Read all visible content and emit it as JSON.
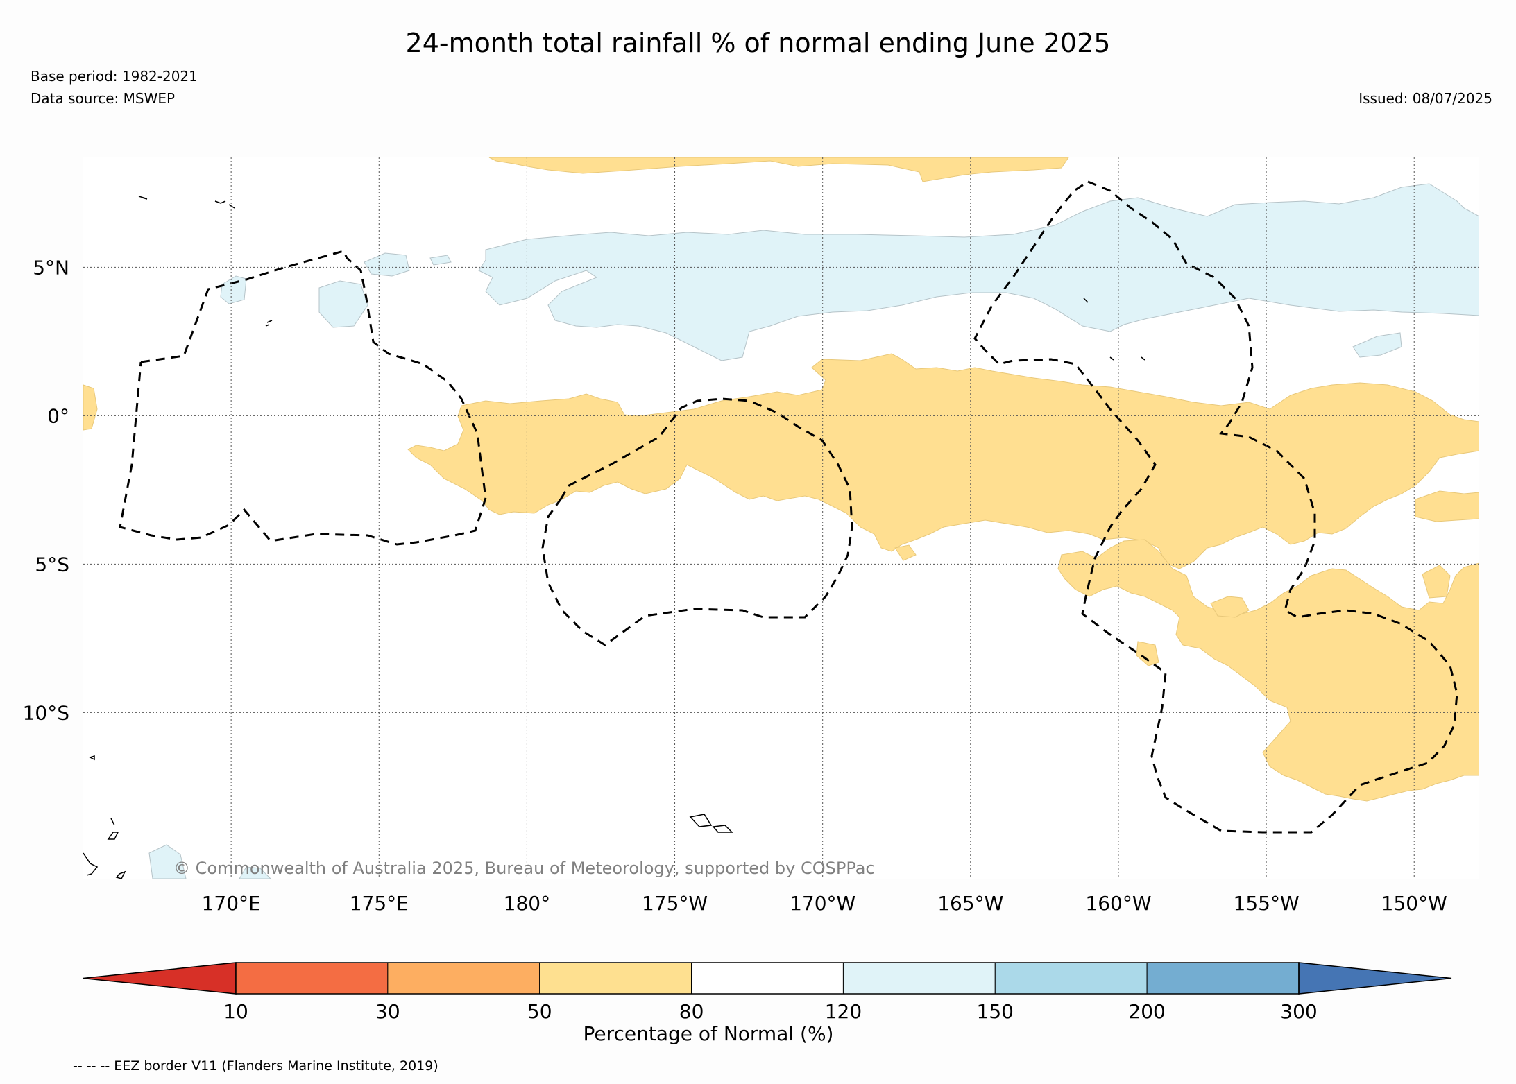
{
  "title": "24-month total rainfall % of normal ending June 2025",
  "base_period": "Base period: 1982-2021",
  "data_source": "Data source: MSWEP",
  "issued": "Issued: 08/07/2025",
  "copyright": "© Commonwealth of Australia 2025, Bureau of Meteorology, supported by COSPPac",
  "footnote": "-- -- -- EEZ border V11 (Flanders Marine Institute, 2019)",
  "map": {
    "lon_range": [
      165,
      212.2
    ],
    "lat_range": [
      -15.6,
      8.7
    ],
    "lon_ticks": [
      {
        "lon": 170,
        "label": "170°E"
      },
      {
        "lon": 175,
        "label": "175°E"
      },
      {
        "lon": 180,
        "label": "180°"
      },
      {
        "lon": 185,
        "label": "175°W"
      },
      {
        "lon": 190,
        "label": "170°W"
      },
      {
        "lon": 195,
        "label": "165°W"
      },
      {
        "lon": 200,
        "label": "160°W"
      },
      {
        "lon": 205,
        "label": "155°W"
      },
      {
        "lon": 210,
        "label": "150°W"
      }
    ],
    "lat_ticks": [
      {
        "lat": 5,
        "label": "5°N"
      },
      {
        "lat": 0,
        "label": "0°"
      },
      {
        "lat": -5,
        "label": "5°S"
      },
      {
        "lat": -10,
        "label": "10°S"
      }
    ],
    "colors": {
      "dry_50_80": "#ffdf91",
      "wet_120_150": "#e0f3f8"
    }
  },
  "colorbar": {
    "title": "Percentage of Normal (%)",
    "tick_labels": [
      "10",
      "30",
      "50",
      "80",
      "120",
      "150",
      "200",
      "300"
    ],
    "colors": [
      "#d73027",
      "#f46d43",
      "#fdae61",
      "#fee090",
      "#ffffff",
      "#e0f3f8",
      "#abd9e9",
      "#74add1",
      "#4575b4"
    ]
  }
}
